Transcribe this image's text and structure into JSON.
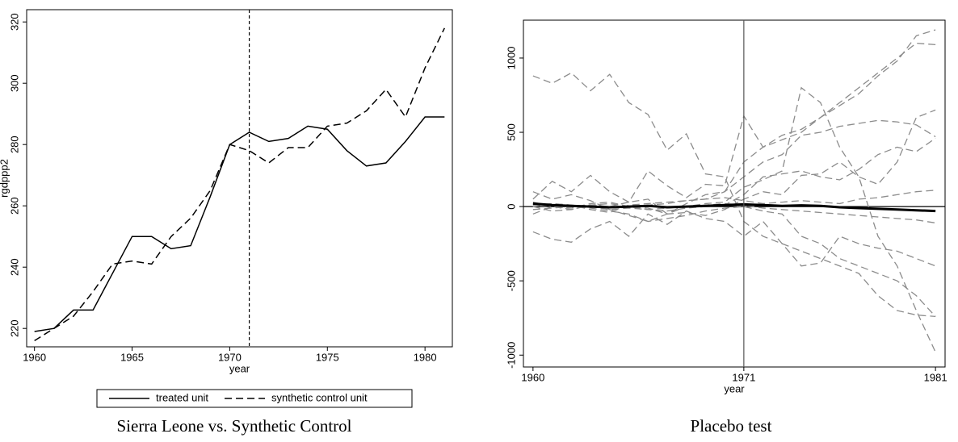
{
  "chart_data": [
    {
      "type": "line",
      "title": "Sierra Leone vs. Synthetic Control",
      "xlabel": "year",
      "ylabel": "rgdppp2",
      "x": [
        1960,
        1961,
        1962,
        1963,
        1964,
        1965,
        1966,
        1967,
        1968,
        1969,
        1970,
        1971,
        1972,
        1973,
        1974,
        1975,
        1976,
        1977,
        1978,
        1979,
        1980,
        1981
      ],
      "xlim": [
        1959.6,
        1981.4
      ],
      "xticks": [
        1960,
        1965,
        1970,
        1975,
        1980
      ],
      "ylim": [
        214,
        324
      ],
      "yticks": [
        220,
        240,
        260,
        280,
        300,
        320
      ],
      "vline": 1971,
      "vline_style": "dashed",
      "legend": "bottom",
      "series": [
        {
          "name": "treated unit",
          "color": "#000000",
          "style": "solid",
          "width": 1.5,
          "values": [
            219,
            220,
            226,
            226,
            238,
            250,
            250,
            246,
            247,
            263,
            280,
            284,
            281,
            282,
            286,
            285,
            278,
            273,
            274,
            281,
            289,
            289
          ]
        },
        {
          "name": "synthetic control unit",
          "color": "#000000",
          "style": "dashed",
          "width": 1.5,
          "values": [
            216,
            220,
            224,
            232,
            241,
            242,
            241,
            250,
            256,
            265,
            280,
            278,
            274,
            279,
            279,
            286,
            287,
            291,
            298,
            289,
            305,
            318
          ]
        }
      ]
    },
    {
      "type": "line",
      "title": "Placebo test",
      "xlabel": "year",
      "x": [
        1960,
        1961,
        1962,
        1963,
        1964,
        1965,
        1966,
        1967,
        1968,
        1969,
        1970,
        1971,
        1972,
        1973,
        1974,
        1975,
        1976,
        1977,
        1978,
        1979,
        1980,
        1981
      ],
      "xlim": [
        1959.5,
        1981.5
      ],
      "xticks": [
        1960,
        1971,
        1981
      ],
      "ylim": [
        -1080,
        1255
      ],
      "yticks": [
        -1000,
        -500,
        0,
        500,
        1000
      ],
      "vline": 1971,
      "vline_style": "solid",
      "hline": 0,
      "series": [
        {
          "color": "#8c8c8c",
          "style": "dashed",
          "width": 1.3,
          "values": [
            880,
            830,
            900,
            780,
            890,
            700,
            620,
            380,
            490,
            220,
            200,
            -100,
            -200,
            -250,
            -300,
            -350,
            -400,
            -450,
            -600,
            -700,
            -730,
            -740
          ]
        },
        {
          "color": "#8c8c8c",
          "style": "dashed",
          "width": 1.3,
          "values": [
            -50,
            0,
            -20,
            10,
            0,
            30,
            50,
            -50,
            20,
            80,
            100,
            300,
            400,
            480,
            520,
            600,
            680,
            760,
            880,
            980,
            1150,
            1190
          ]
        },
        {
          "color": "#8c8c8c",
          "style": "dashed",
          "width": 1.3,
          "values": [
            0,
            20,
            10,
            -20,
            -40,
            10,
            20,
            30,
            40,
            50,
            100,
            200,
            300,
            350,
            480,
            500,
            540,
            560,
            580,
            570,
            550,
            470
          ]
        },
        {
          "color": "#8c8c8c",
          "style": "dashed",
          "width": 1.3,
          "values": [
            -170,
            -220,
            -240,
            -150,
            -100,
            -200,
            -50,
            -120,
            -30,
            -80,
            -100,
            -200,
            -100,
            -250,
            -400,
            -380,
            -200,
            -250,
            -280,
            -300,
            -350,
            -400
          ]
        },
        {
          "color": "#8c8c8c",
          "style": "dashed",
          "width": 1.3,
          "values": [
            50,
            170,
            100,
            210,
            100,
            30,
            240,
            140,
            60,
            150,
            140,
            610,
            400,
            450,
            500,
            600,
            700,
            800,
            900,
            1000,
            1100,
            1090
          ]
        },
        {
          "color": "#8c8c8c",
          "style": "dashed",
          "width": 1.3,
          "values": [
            0,
            -30,
            -20,
            10,
            20,
            0,
            -10,
            -50,
            -40,
            -60,
            -20,
            50,
            100,
            80,
            210,
            220,
            300,
            200,
            150,
            300,
            600,
            650
          ]
        },
        {
          "color": "#8c8c8c",
          "style": "dashed",
          "width": 1.3,
          "values": [
            100,
            50,
            80,
            40,
            -20,
            -60,
            -100,
            -50,
            0,
            20,
            30,
            130,
            180,
            240,
            800,
            700,
            400,
            200,
            -200,
            -400,
            -700,
            -980
          ]
        },
        {
          "color": "#8c8c8c",
          "style": "dashed",
          "width": 1.3,
          "values": [
            20,
            10,
            0,
            -10,
            -30,
            -50,
            -100,
            -80,
            -60,
            -30,
            -10,
            0,
            -30,
            -50,
            -200,
            -250,
            -350,
            -400,
            -450,
            -500,
            -600,
            -740
          ]
        },
        {
          "color": "#8c8c8c",
          "style": "dashed",
          "width": 1.3,
          "values": [
            -20,
            -10,
            0,
            10,
            0,
            -10,
            -20,
            -10,
            0,
            10,
            20,
            10,
            -10,
            -20,
            -30,
            -40,
            -50,
            -60,
            -70,
            -80,
            -90,
            -110
          ]
        },
        {
          "color": "#8c8c8c",
          "style": "dashed",
          "width": 1.3,
          "values": [
            10,
            20,
            10,
            0,
            -20,
            -10,
            10,
            20,
            40,
            50,
            60,
            40,
            20,
            30,
            40,
            30,
            20,
            50,
            60,
            80,
            100,
            110
          ]
        },
        {
          "color": "#8c8c8c",
          "style": "dashed",
          "width": 1.3,
          "values": [
            30,
            0,
            -10,
            20,
            30,
            0,
            -20,
            -30,
            -10,
            0,
            10,
            80,
            200,
            220,
            240,
            200,
            180,
            250,
            350,
            400,
            370,
            460
          ]
        },
        {
          "color": "#000000",
          "style": "solid",
          "width": 3,
          "values": [
            20,
            10,
            5,
            0,
            -5,
            0,
            5,
            -5,
            0,
            5,
            10,
            15,
            10,
            5,
            8,
            5,
            -5,
            -10,
            -15,
            -20,
            -25,
            -30
          ]
        }
      ]
    }
  ]
}
